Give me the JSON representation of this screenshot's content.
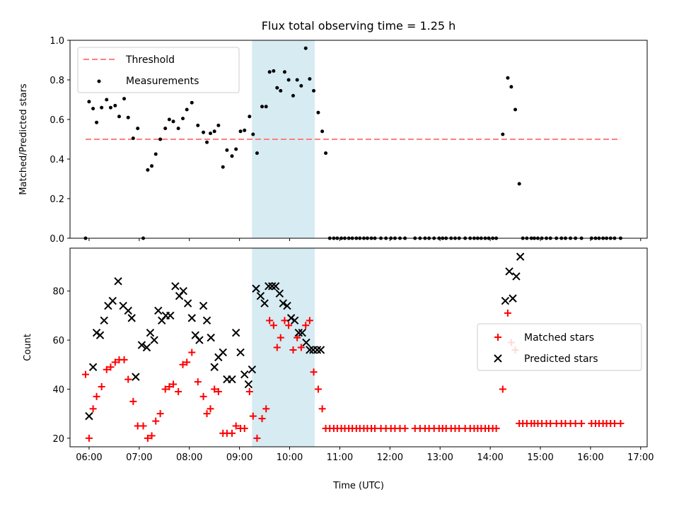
{
  "chart_data": [
    {
      "type": "scatter",
      "title": "Flux total observing time = 1.25 h",
      "ylabel": "Matched/Predicted stars",
      "xlabel": "",
      "xlim": [
        5.62,
        17.13
      ],
      "ylim": [
        0.0,
        1.0
      ],
      "xticks": [
        "06:00",
        "07:00",
        "08:00",
        "09:00",
        "10:00",
        "11:00",
        "12:00",
        "13:00",
        "14:00",
        "15:00",
        "16:00",
        "17:00"
      ],
      "yticks": [
        "0.0",
        "0.2",
        "0.4",
        "0.6",
        "0.8",
        "1.0"
      ],
      "legend_position": "top-left",
      "shaded_span": {
        "start": 9.25,
        "end": 10.5,
        "color": "#add8e6"
      },
      "series": [
        {
          "name": "Threshold",
          "kind": "line",
          "style": "dashed",
          "color": "#ff7f7f",
          "x": [
            5.93,
            16.6
          ],
          "y": [
            0.5,
            0.5
          ]
        },
        {
          "name": "Measurements",
          "kind": "dots",
          "color": "#000000",
          "x": [
            5.93,
            6.0,
            6.08,
            6.15,
            6.25,
            6.35,
            6.43,
            6.52,
            6.6,
            6.7,
            6.78,
            6.88,
            6.97,
            7.08,
            7.17,
            7.25,
            7.33,
            7.42,
            7.52,
            7.6,
            7.68,
            7.78,
            7.87,
            7.95,
            8.05,
            8.17,
            8.28,
            8.35,
            8.42,
            8.5,
            8.58,
            8.67,
            8.75,
            8.85,
            8.93,
            9.02,
            9.1,
            9.2,
            9.27,
            9.35,
            9.45,
            9.53,
            9.6,
            9.68,
            9.75,
            9.82,
            9.9,
            9.98,
            10.07,
            10.15,
            10.23,
            10.32,
            10.4,
            10.48,
            10.57,
            10.65,
            10.72,
            10.8,
            10.88,
            10.95,
            11.03,
            11.1,
            11.18,
            11.25,
            11.33,
            11.4,
            11.48,
            11.55,
            11.63,
            11.7,
            11.82,
            11.92,
            12.02,
            12.1,
            12.2,
            12.3,
            12.5,
            12.6,
            12.7,
            12.78,
            12.88,
            12.98,
            13.05,
            13.12,
            13.22,
            13.3,
            13.38,
            13.5,
            13.6,
            13.68,
            13.75,
            13.82,
            13.9,
            13.97,
            14.05,
            14.12,
            14.25,
            14.35,
            14.42,
            14.5,
            14.58,
            14.65,
            14.73,
            14.82,
            14.88,
            14.95,
            15.03,
            15.12,
            15.2,
            15.32,
            15.42,
            15.5,
            15.6,
            15.7,
            15.82,
            16.02,
            16.1,
            16.17,
            16.25,
            16.32,
            16.4,
            16.48,
            16.6
          ],
          "y": [
            0.0,
            0.69,
            0.655,
            0.585,
            0.66,
            0.7,
            0.66,
            0.67,
            0.615,
            0.705,
            0.61,
            0.505,
            0.555,
            0.0,
            0.345,
            0.365,
            0.425,
            0.5,
            0.555,
            0.6,
            0.59,
            0.555,
            0.605,
            0.65,
            0.685,
            0.57,
            0.535,
            0.485,
            0.53,
            0.54,
            0.57,
            0.36,
            0.445,
            0.415,
            0.45,
            0.54,
            0.545,
            0.615,
            0.525,
            0.43,
            0.665,
            0.665,
            0.84,
            0.845,
            0.76,
            0.745,
            0.84,
            0.8,
            0.72,
            0.8,
            0.77,
            0.96,
            0.805,
            0.745,
            0.635,
            0.54,
            0.43,
            0.0,
            0.0,
            0.0,
            0.0,
            0.0,
            0.0,
            0.0,
            0.0,
            0.0,
            0.0,
            0.0,
            0.0,
            0.0,
            0.0,
            0.0,
            0.0,
            0.0,
            0.0,
            0.0,
            0.0,
            0.0,
            0.0,
            0.0,
            0.0,
            0.0,
            0.0,
            0.0,
            0.0,
            0.0,
            0.0,
            0.0,
            0.0,
            0.0,
            0.0,
            0.0,
            0.0,
            0.0,
            0.0,
            0.0,
            0.525,
            0.81,
            0.765,
            0.65,
            0.275,
            0.0,
            0.0,
            0.0,
            0.0,
            0.0,
            0.0,
            0.0,
            0.0,
            0.0,
            0.0,
            0.0,
            0.0,
            0.0,
            0.0,
            0.0,
            0.0,
            0.0,
            0.0,
            0.0,
            0.0,
            0.0,
            0.0
          ]
        }
      ]
    },
    {
      "type": "scatter",
      "title": "",
      "xlabel": "Time (UTC)",
      "ylabel": "Count",
      "xlim": [
        5.62,
        17.13
      ],
      "ylim": [
        16.5,
        97.5
      ],
      "xticks": [
        "06:00",
        "07:00",
        "08:00",
        "09:00",
        "10:00",
        "11:00",
        "12:00",
        "13:00",
        "14:00",
        "15:00",
        "16:00",
        "17:00"
      ],
      "yticks": [
        "20",
        "40",
        "60",
        "80"
      ],
      "legend_position": "center-right",
      "shaded_span": {
        "start": 9.25,
        "end": 10.5,
        "color": "#add8e6"
      },
      "series": [
        {
          "name": "Matched stars",
          "marker": "plus",
          "color": "#ff0000",
          "x": [
            5.93,
            6.0,
            6.08,
            6.15,
            6.25,
            6.35,
            6.43,
            6.52,
            6.6,
            6.7,
            6.78,
            6.88,
            6.97,
            7.08,
            7.17,
            7.25,
            7.33,
            7.42,
            7.52,
            7.6,
            7.68,
            7.78,
            7.87,
            7.95,
            8.05,
            8.17,
            8.28,
            8.35,
            8.42,
            8.5,
            8.58,
            8.67,
            8.75,
            8.85,
            8.93,
            9.02,
            9.1,
            9.2,
            9.27,
            9.35,
            9.45,
            9.53,
            9.6,
            9.68,
            9.75,
            9.82,
            9.9,
            9.98,
            10.07,
            10.15,
            10.23,
            10.32,
            10.4,
            10.48,
            10.57,
            10.65,
            10.72,
            10.8,
            10.88,
            10.95,
            11.03,
            11.1,
            11.18,
            11.25,
            11.33,
            11.4,
            11.48,
            11.55,
            11.63,
            11.7,
            11.82,
            11.92,
            12.02,
            12.1,
            12.2,
            12.3,
            12.5,
            12.6,
            12.7,
            12.78,
            12.88,
            12.98,
            13.05,
            13.12,
            13.22,
            13.3,
            13.38,
            13.5,
            13.6,
            13.68,
            13.75,
            13.82,
            13.9,
            13.97,
            14.05,
            14.12,
            14.25,
            14.35,
            14.42,
            14.5,
            14.58,
            14.65,
            14.73,
            14.82,
            14.88,
            14.95,
            15.03,
            15.12,
            15.2,
            15.32,
            15.42,
            15.5,
            15.6,
            15.7,
            15.82,
            16.02,
            16.1,
            16.17,
            16.25,
            16.32,
            16.4,
            16.48,
            16.6
          ],
          "y": [
            46,
            20,
            32,
            37,
            41,
            48,
            49,
            51,
            52,
            52,
            44,
            35,
            25,
            25,
            20,
            21,
            27,
            30,
            40,
            41,
            42,
            39,
            50,
            51,
            55,
            43,
            37,
            30,
            32,
            40,
            39,
            22,
            22,
            22,
            25,
            24,
            24,
            39,
            29,
            20,
            28,
            32,
            68,
            66,
            57,
            61,
            68,
            66,
            56,
            61,
            57,
            66,
            68,
            47,
            40,
            32,
            24,
            24,
            24,
            24,
            24,
            24,
            24,
            24,
            24,
            24,
            24,
            24,
            24,
            24,
            24,
            24,
            24,
            24,
            24,
            24,
            24,
            24,
            24,
            24,
            24,
            24,
            24,
            24,
            24,
            24,
            24,
            24,
            24,
            24,
            24,
            24,
            24,
            24,
            24,
            24,
            40,
            71,
            59,
            56,
            26,
            26,
            26,
            26,
            26,
            26,
            26,
            26,
            26,
            26,
            26,
            26,
            26,
            26,
            26,
            26,
            26,
            26,
            26,
            26,
            26,
            26,
            26
          ]
        },
        {
          "name": "Predicted stars",
          "marker": "x",
          "color": "#000000",
          "x": [
            6.0,
            6.08,
            6.15,
            6.22,
            6.3,
            6.38,
            6.47,
            6.58,
            6.68,
            6.78,
            6.85,
            6.93,
            7.05,
            7.15,
            7.22,
            7.3,
            7.38,
            7.45,
            7.53,
            7.62,
            7.72,
            7.8,
            7.88,
            7.97,
            8.05,
            8.12,
            8.2,
            8.28,
            8.35,
            8.43,
            8.5,
            8.58,
            8.67,
            8.75,
            8.85,
            8.93,
            9.02,
            9.1,
            9.18,
            9.25,
            9.33,
            9.42,
            9.5,
            9.58,
            9.65,
            9.72,
            9.8,
            9.87,
            9.95,
            10.03,
            10.1,
            10.18,
            10.25,
            10.33,
            10.4,
            10.47,
            10.55,
            10.62,
            14.3,
            14.38,
            14.45,
            14.52,
            14.6
          ],
          "y": [
            29,
            49,
            63,
            62,
            68,
            74,
            76,
            84,
            74,
            72,
            69,
            45,
            58,
            57,
            63,
            60,
            72,
            68,
            70,
            70,
            82,
            78,
            80,
            75,
            69,
            62,
            60,
            74,
            68,
            61,
            49,
            53,
            55,
            44,
            44,
            63,
            55,
            46,
            42,
            48,
            81,
            78,
            75,
            82,
            82,
            82,
            79,
            75,
            74,
            69,
            68,
            63,
            63,
            59,
            56,
            56,
            56,
            56,
            76,
            88,
            77,
            86,
            94
          ]
        }
      ]
    }
  ]
}
